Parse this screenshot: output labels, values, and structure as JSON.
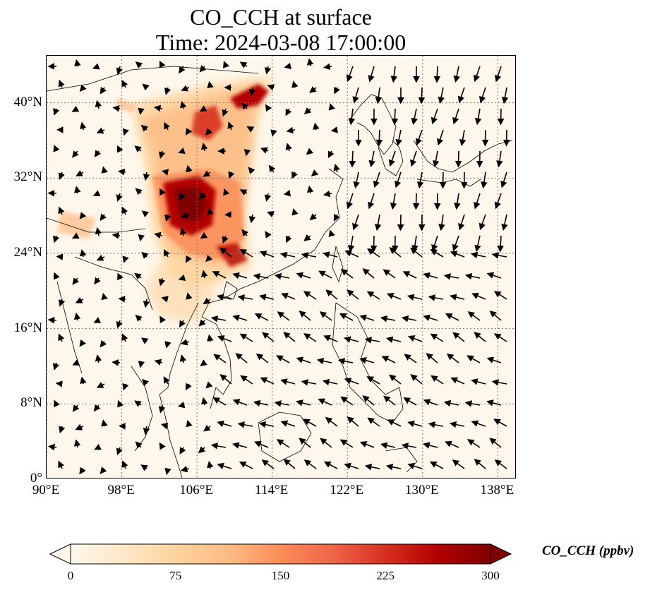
{
  "title": {
    "line1": "CO_CCH at surface",
    "line2": "Time: 2024-03-08 17:00:00"
  },
  "map": {
    "lon_range": [
      90,
      140
    ],
    "lat_range": [
      0,
      45
    ],
    "lat_ticks": [
      {
        "value": 40,
        "label": "40°N"
      },
      {
        "value": 32,
        "label": "32°N"
      },
      {
        "value": 24,
        "label": "24°N"
      },
      {
        "value": 16,
        "label": "16°N"
      },
      {
        "value": 8,
        "label": "8°N"
      },
      {
        "value": 0,
        "label": "0°"
      }
    ],
    "lon_ticks": [
      {
        "value": 90,
        "label": "90°E"
      },
      {
        "value": 98,
        "label": "98°E"
      },
      {
        "value": 106,
        "label": "106°E"
      },
      {
        "value": 114,
        "label": "114°E"
      },
      {
        "value": 122,
        "label": "122°E"
      },
      {
        "value": 130,
        "label": "130°E"
      },
      {
        "value": 138,
        "label": "138°E"
      }
    ],
    "gridlines": true,
    "background_color": "#fff7ec"
  },
  "colorbar": {
    "label": "CO_CCH (ppbv)",
    "min": 0,
    "max": 300,
    "ticks": [
      {
        "value": 0,
        "label": "0"
      },
      {
        "value": 75,
        "label": "75"
      },
      {
        "value": 150,
        "label": "150"
      },
      {
        "value": 225,
        "label": "225"
      },
      {
        "value": 300,
        "label": "300"
      }
    ],
    "colors": [
      "#fff7ec",
      "#fee8c8",
      "#fdd49e",
      "#fdbb84",
      "#fc8d59",
      "#ef6548",
      "#d7301f",
      "#b30000",
      "#7f0000"
    ],
    "extend": "both"
  }
}
